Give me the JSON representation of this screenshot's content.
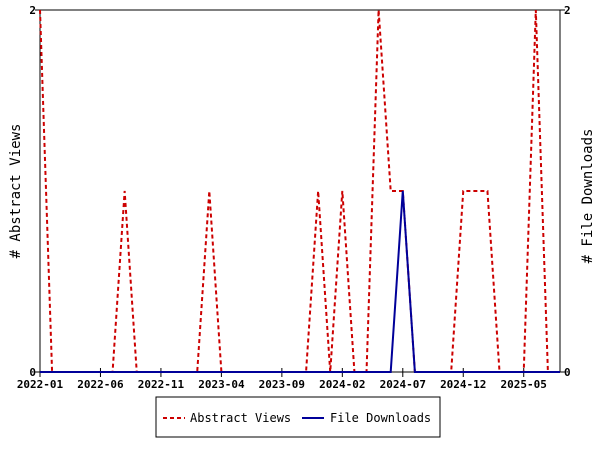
{
  "chart_data": {
    "type": "line",
    "title": "",
    "x_tick_labels": [
      "2022-01",
      "2022-06",
      "2022-11",
      "2023-04",
      "2023-09",
      "2024-02",
      "2024-07",
      "2024-12",
      "2025-05"
    ],
    "x_tick_indices": [
      0,
      5,
      10,
      15,
      20,
      25,
      30,
      35,
      40
    ],
    "x_range": [
      0,
      43
    ],
    "y_left_label": "# Abstract Views",
    "y_right_label": "# File Downloads",
    "y_left_range": [
      0,
      2
    ],
    "y_right_range": [
      0,
      2
    ],
    "y_left_ticks": [
      "0",
      "2"
    ],
    "y_right_ticks": [
      "0",
      "2"
    ],
    "legend_position": "bottom-center",
    "series": [
      {
        "name": "Abstract Views",
        "color": "#cc0000",
        "dash": "dashed",
        "axis": "left",
        "points": [
          [
            0,
            2
          ],
          [
            1,
            0
          ],
          [
            6,
            0
          ],
          [
            7,
            1
          ],
          [
            8,
            0
          ],
          [
            13,
            0
          ],
          [
            14,
            1
          ],
          [
            15,
            0
          ],
          [
            22,
            0
          ],
          [
            23,
            1
          ],
          [
            24,
            0
          ],
          [
            25,
            1
          ],
          [
            26,
            0
          ],
          [
            27,
            0
          ],
          [
            28,
            2
          ],
          [
            29,
            1
          ],
          [
            30,
            1
          ],
          [
            31,
            0
          ],
          [
            34,
            0
          ],
          [
            35,
            1
          ],
          [
            37,
            1
          ],
          [
            38,
            0
          ],
          [
            40,
            0
          ],
          [
            41,
            2
          ],
          [
            42,
            0
          ],
          [
            43,
            0
          ]
        ]
      },
      {
        "name": "File Downloads",
        "color": "#000099",
        "dash": "solid",
        "axis": "right",
        "points": [
          [
            0,
            0
          ],
          [
            29,
            0
          ],
          [
            30,
            1
          ],
          [
            31,
            0
          ],
          [
            43,
            0
          ]
        ]
      }
    ]
  }
}
